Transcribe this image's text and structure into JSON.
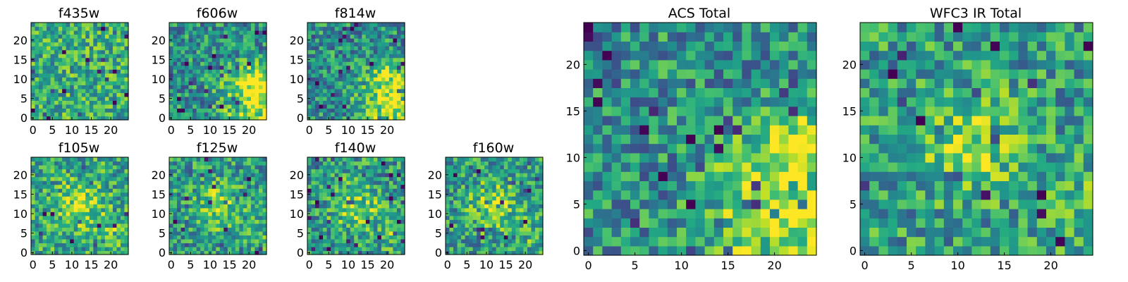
{
  "figure": {
    "colormap": "viridis",
    "grid_size": 25,
    "background": "#ffffff"
  },
  "chart_data": [
    {
      "type": "heatmap",
      "title": "f435w",
      "xticks": [
        "0",
        "5",
        "10",
        "15",
        "20"
      ],
      "yticks": [
        "0",
        "5",
        "10",
        "15",
        "20"
      ],
      "xlim": [
        0,
        25
      ],
      "ylim": [
        0,
        25
      ],
      "pattern": "noise",
      "level": 0.62
    },
    {
      "type": "heatmap",
      "title": "f606w",
      "xticks": [
        "0",
        "5",
        "10",
        "15",
        "20"
      ],
      "yticks": [
        "0",
        "5",
        "10",
        "15",
        "20"
      ],
      "xlim": [
        0,
        25
      ],
      "ylim": [
        0,
        25
      ],
      "pattern": "noise-bright-lower-right",
      "level": 0.5
    },
    {
      "type": "heatmap",
      "title": "f814w",
      "xticks": [
        "0",
        "5",
        "10",
        "15",
        "20"
      ],
      "yticks": [
        "0",
        "5",
        "10",
        "15",
        "20"
      ],
      "xlim": [
        0,
        25
      ],
      "ylim": [
        0,
        25
      ],
      "pattern": "noise-bright-lower-right",
      "level": 0.5
    },
    {
      "type": "heatmap",
      "title": "f105w",
      "xticks": [
        "0",
        "5",
        "10",
        "15",
        "20"
      ],
      "yticks": [
        "0",
        "5",
        "10",
        "15",
        "20"
      ],
      "xlim": [
        0,
        25
      ],
      "ylim": [
        0,
        25
      ],
      "pattern": "central-blob",
      "level": 0.6
    },
    {
      "type": "heatmap",
      "title": "f125w",
      "xticks": [
        "0",
        "5",
        "10",
        "15",
        "20"
      ],
      "yticks": [
        "0",
        "5",
        "10",
        "15",
        "20"
      ],
      "xlim": [
        0,
        25
      ],
      "ylim": [
        0,
        25
      ],
      "pattern": "central-blob",
      "level": 0.55
    },
    {
      "type": "heatmap",
      "title": "f140w",
      "xticks": [
        "0",
        "5",
        "10",
        "15",
        "20"
      ],
      "yticks": [
        "0",
        "5",
        "10",
        "15",
        "20"
      ],
      "xlim": [
        0,
        25
      ],
      "ylim": [
        0,
        25
      ],
      "pattern": "central-blob",
      "level": 0.55
    },
    {
      "type": "heatmap",
      "title": "f160w",
      "xticks": [
        "0",
        "5",
        "10",
        "15",
        "20"
      ],
      "yticks": [
        "0",
        "5",
        "10",
        "15",
        "20"
      ],
      "xlim": [
        0,
        25
      ],
      "ylim": [
        0,
        25
      ],
      "pattern": "central-blob",
      "level": 0.55
    },
    {
      "type": "heatmap",
      "title": "ACS Total",
      "xticks": [
        "0",
        "5",
        "10",
        "15",
        "20"
      ],
      "yticks": [
        "0",
        "5",
        "10",
        "15",
        "20"
      ],
      "xlim": [
        0,
        25
      ],
      "ylim": [
        0,
        25
      ],
      "pattern": "noise-bright-lower-right",
      "level": 0.5
    },
    {
      "type": "heatmap",
      "title": "WFC3 IR Total",
      "xticks": [
        "0",
        "5",
        "10",
        "15",
        "20"
      ],
      "yticks": [
        "0",
        "5",
        "10",
        "15",
        "20"
      ],
      "xlim": [
        0,
        25
      ],
      "ylim": [
        0,
        25
      ],
      "pattern": "central-blob",
      "level": 0.55
    }
  ]
}
